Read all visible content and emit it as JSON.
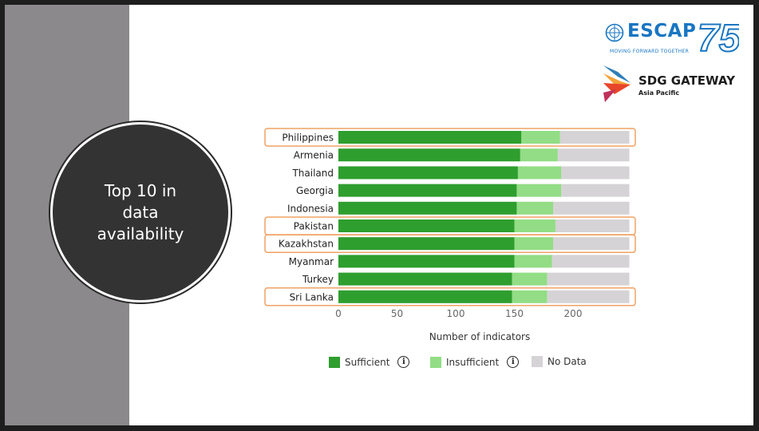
{
  "slide": {
    "circle_text": "Top 10 in\ndata\navailability"
  },
  "logos": {
    "escap": {
      "word": "ESCAP",
      "number": "75",
      "tagline": "MOVING FORWARD TOGETHER",
      "color": "#1976c2"
    },
    "sdg": {
      "title": "SDG GATEWAY",
      "subtitle": "Asia Pacific"
    }
  },
  "colors": {
    "sufficient": "#2e9e2e",
    "insufficient": "#92dd85",
    "no_data": "#d5d3d5",
    "highlight": "#f0a264"
  },
  "info_icon": "info-icon",
  "chart_data": {
    "type": "bar",
    "orientation": "horizontal",
    "stacked": true,
    "categories": [
      "Philippines",
      "Armenia",
      "Thailand",
      "Georgia",
      "Indonesia",
      "Pakistan",
      "Kazakhstan",
      "Myanmar",
      "Turkey",
      "Sri Lanka"
    ],
    "series": [
      {
        "name": "Sufficient",
        "values": [
          156,
          155,
          153,
          152,
          152,
          150,
          150,
          150,
          148,
          148
        ]
      },
      {
        "name": "Insufficient",
        "values": [
          33,
          32,
          37,
          38,
          31,
          35,
          33,
          32,
          30,
          30
        ]
      },
      {
        "name": "No Data",
        "values": [
          59,
          61,
          58,
          58,
          65,
          63,
          65,
          66,
          70,
          70
        ]
      }
    ],
    "highlighted": [
      "Philippines",
      "Pakistan",
      "Kazakhstan",
      "Sri Lanka"
    ],
    "xlabel": "Number of indicators",
    "ylabel": "",
    "xticks": [
      0,
      50,
      100,
      150,
      200
    ],
    "xlim": [
      0,
      248
    ],
    "grid": false,
    "legend_position": "bottom"
  }
}
